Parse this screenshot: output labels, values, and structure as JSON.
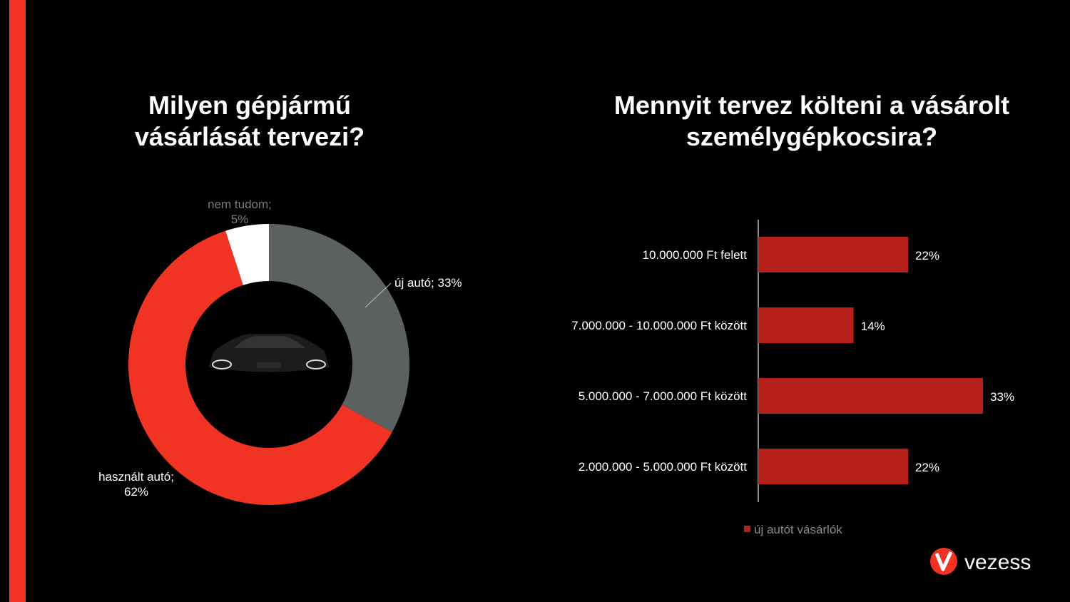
{
  "chart_data": [
    {
      "type": "donut",
      "title": "Milyen gépjármű vásárlását tervezi?",
      "values": [
        33,
        62,
        5
      ],
      "value_labels": [
        "új autó; 33%",
        "használt autó; 62%",
        "nem tudom; 5%"
      ],
      "colors": [
        "#5b6160",
        "#f03323",
        "#ffffff"
      ]
    },
    {
      "type": "bar",
      "title": "Mennyit tervez költeni a vásárolt személygépkocsira?",
      "categories": [
        "10.000.000 Ft felett",
        "7.000.000 - 10.000.000 Ft között",
        "5.000.000 - 7.000.000 Ft között",
        "2.000.000 - 5.000.000 Ft között"
      ],
      "series": [
        {
          "name": "új autót vásárlók",
          "color": "#b5211a",
          "values": [
            22,
            14,
            33,
            22
          ],
          "value_labels": [
            "22%",
            "14%",
            "33%",
            "22%"
          ]
        }
      ]
    }
  ],
  "logo": "vezess"
}
